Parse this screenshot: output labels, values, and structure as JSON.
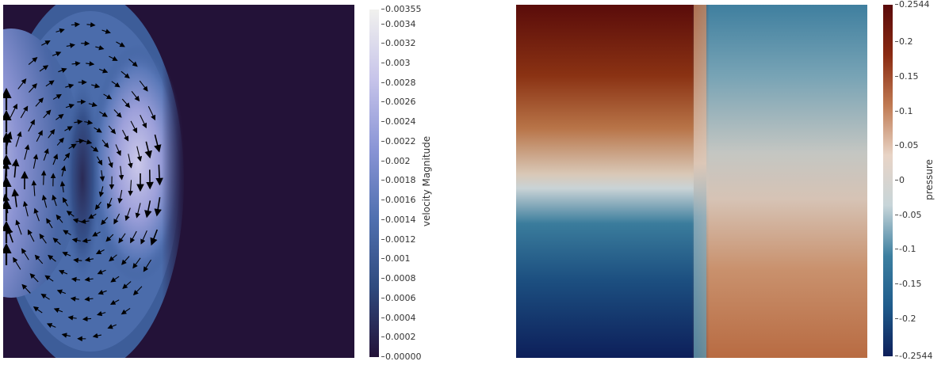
{
  "left_panel": {
    "colorbar": {
      "label": "velocity Magnitude",
      "ticks": [
        "0.00355",
        "0.0034",
        "0.0032",
        "0.003",
        "0.0028",
        "0.0026",
        "0.0024",
        "0.0022",
        "0.002",
        "0.0018",
        "0.0016",
        "0.0014",
        "0.0012",
        "0.001",
        "0.0008",
        "0.0006",
        "0.0004",
        "0.0002",
        "0.00000"
      ],
      "tick_values": [
        0.00355,
        0.0034,
        0.0032,
        0.003,
        0.0028,
        0.0026,
        0.0024,
        0.0022,
        0.002,
        0.0018,
        0.0016,
        0.0014,
        0.0012,
        0.001,
        0.0008,
        0.0006,
        0.0004,
        0.0002,
        0.0
      ],
      "range": [
        0.0,
        0.00355
      ],
      "colors": [
        "#231238",
        "#2f4a7e",
        "#5070b0",
        "#8a95d6",
        "#c7c4ea",
        "#f1f1ee"
      ]
    }
  },
  "right_panel": {
    "colorbar": {
      "label": "pressure",
      "ticks": [
        "0.2544",
        "0.2",
        "0.15",
        "0.1",
        "0.05",
        "0",
        "-0.05",
        "-0.1",
        "-0.15",
        "-0.2",
        "-0.2544"
      ],
      "tick_values": [
        0.2544,
        0.2,
        0.15,
        0.1,
        0.05,
        0,
        -0.05,
        -0.1,
        -0.15,
        -0.2,
        -0.2544
      ],
      "range": [
        -0.2544,
        0.2544
      ],
      "colors": [
        "#0d1f5a",
        "#1f5c8c",
        "#3c7fa0",
        "#c7d5d9",
        "#e8d4c6",
        "#c07a52",
        "#8a2a12",
        "#5a0a0a"
      ]
    }
  }
}
